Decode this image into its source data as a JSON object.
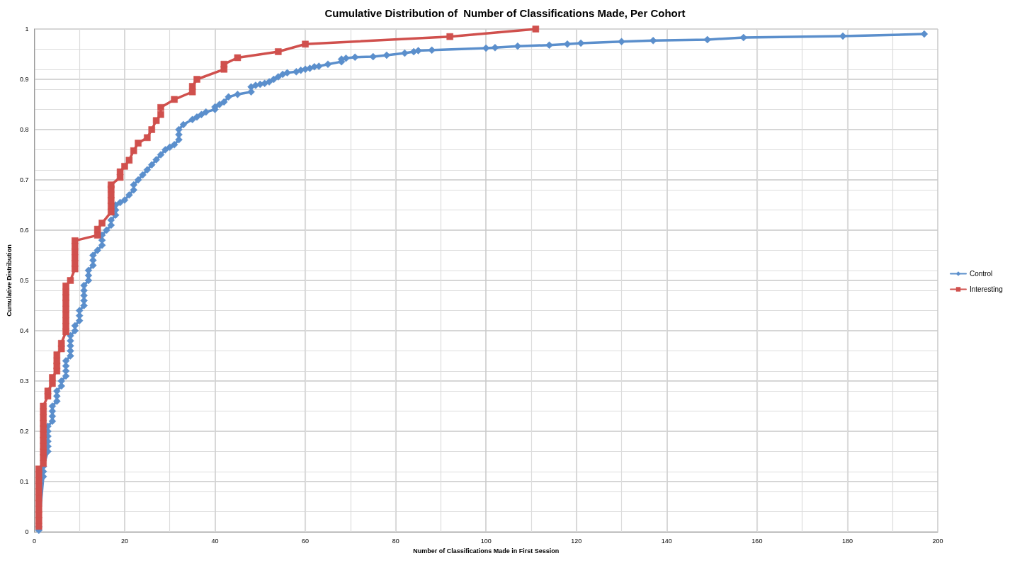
{
  "chart_data": {
    "type": "line",
    "title": "Cumulative Distribution of  Number of Classifications Made, Per Cohort",
    "xlabel": "Number of Classifications Made in First Session",
    "ylabel": "Cumulative Distribution",
    "xlim": [
      0,
      200
    ],
    "xticks": [
      0,
      20,
      40,
      60,
      80,
      100,
      120,
      140,
      160,
      180,
      200
    ],
    "ylim": [
      0,
      1
    ],
    "yticks": [
      0,
      0.1,
      0.2,
      0.3,
      0.4,
      0.5,
      0.6,
      0.7,
      0.8,
      0.9,
      1
    ],
    "grid": true,
    "legend": "right",
    "line_style": "solid",
    "series": [
      {
        "name": "Control",
        "color": "#5b8fcc",
        "marker": "diamond",
        "x": [
          1,
          1,
          2,
          2,
          2,
          3,
          3,
          3,
          3,
          3,
          3,
          4,
          4,
          4,
          4,
          5,
          5,
          5,
          6,
          6,
          7,
          7,
          7,
          7,
          8,
          8,
          8,
          8,
          8,
          9,
          9,
          10,
          10,
          10,
          11,
          11,
          11,
          11,
          11,
          12,
          12,
          12,
          13,
          13,
          13,
          14,
          15,
          15,
          15,
          16,
          17,
          17,
          18,
          18,
          18,
          19,
          20,
          21,
          22,
          22,
          23,
          24,
          25,
          26,
          27,
          28,
          29,
          30,
          31,
          32,
          32,
          32,
          33,
          35,
          36,
          37,
          38,
          40,
          40,
          41,
          42,
          43,
          45,
          48,
          48,
          49,
          50,
          51,
          52,
          53,
          54,
          55,
          56,
          58,
          59,
          60,
          61,
          62,
          63,
          65,
          68,
          68,
          69,
          71,
          75,
          78,
          82,
          84,
          85,
          88,
          100,
          102,
          107,
          114,
          118,
          121,
          130,
          137,
          149,
          157,
          179,
          197
        ],
        "values": [
          0.003,
          0.01,
          0.11,
          0.12,
          0.13,
          0.16,
          0.17,
          0.18,
          0.19,
          0.2,
          0.21,
          0.22,
          0.23,
          0.24,
          0.25,
          0.26,
          0.27,
          0.28,
          0.29,
          0.3,
          0.31,
          0.32,
          0.33,
          0.34,
          0.35,
          0.36,
          0.37,
          0.38,
          0.39,
          0.4,
          0.41,
          0.42,
          0.43,
          0.44,
          0.45,
          0.46,
          0.47,
          0.48,
          0.49,
          0.5,
          0.51,
          0.52,
          0.53,
          0.54,
          0.55,
          0.56,
          0.57,
          0.58,
          0.59,
          0.6,
          0.61,
          0.62,
          0.63,
          0.64,
          0.65,
          0.655,
          0.66,
          0.67,
          0.68,
          0.69,
          0.7,
          0.71,
          0.72,
          0.73,
          0.74,
          0.75,
          0.76,
          0.765,
          0.77,
          0.78,
          0.79,
          0.8,
          0.81,
          0.82,
          0.825,
          0.83,
          0.835,
          0.84,
          0.845,
          0.85,
          0.855,
          0.865,
          0.87,
          0.875,
          0.885,
          0.888,
          0.89,
          0.892,
          0.895,
          0.9,
          0.905,
          0.91,
          0.913,
          0.915,
          0.918,
          0.92,
          0.922,
          0.925,
          0.926,
          0.93,
          0.935,
          0.94,
          0.942,
          0.944,
          0.945,
          0.948,
          0.952,
          0.955,
          0.957,
          0.958,
          0.962,
          0.963,
          0.966,
          0.968,
          0.97,
          0.972,
          0.975,
          0.977,
          0.979,
          0.983,
          0.986,
          0.99
        ]
      },
      {
        "name": "Interesting",
        "color": "#d0504d",
        "marker": "square",
        "x": [
          1,
          1,
          1,
          1,
          1,
          1,
          1,
          1,
          1,
          1,
          1,
          2,
          2,
          2,
          2,
          2,
          2,
          2,
          2,
          2,
          2,
          2,
          3,
          3,
          4,
          4,
          5,
          5,
          5,
          5,
          6,
          6,
          7,
          7,
          7,
          7,
          7,
          7,
          7,
          7,
          7,
          8,
          9,
          9,
          9,
          9,
          9,
          9,
          14,
          14,
          15,
          17,
          17,
          17,
          17,
          17,
          17,
          19,
          19,
          20,
          21,
          22,
          23,
          25,
          26,
          27,
          28,
          28,
          31,
          35,
          35,
          36,
          42,
          42,
          45,
          54,
          60,
          92,
          111
        ],
        "values": [
          0.011,
          0.023,
          0.034,
          0.045,
          0.057,
          0.068,
          0.08,
          0.091,
          0.102,
          0.114,
          0.125,
          0.136,
          0.148,
          0.159,
          0.17,
          0.182,
          0.193,
          0.205,
          0.216,
          0.227,
          0.239,
          0.25,
          0.27,
          0.28,
          0.295,
          0.307,
          0.32,
          0.33,
          0.34,
          0.352,
          0.364,
          0.375,
          0.398,
          0.409,
          0.42,
          0.432,
          0.443,
          0.455,
          0.466,
          0.477,
          0.489,
          0.5,
          0.523,
          0.534,
          0.545,
          0.557,
          0.568,
          0.579,
          0.59,
          0.602,
          0.614,
          0.636,
          0.648,
          0.659,
          0.67,
          0.682,
          0.69,
          0.705,
          0.716,
          0.727,
          0.739,
          0.758,
          0.773,
          0.784,
          0.8,
          0.818,
          0.83,
          0.844,
          0.86,
          0.875,
          0.886,
          0.9,
          0.92,
          0.93,
          0.943,
          0.955,
          0.97,
          0.985,
          1.0
        ]
      }
    ]
  }
}
